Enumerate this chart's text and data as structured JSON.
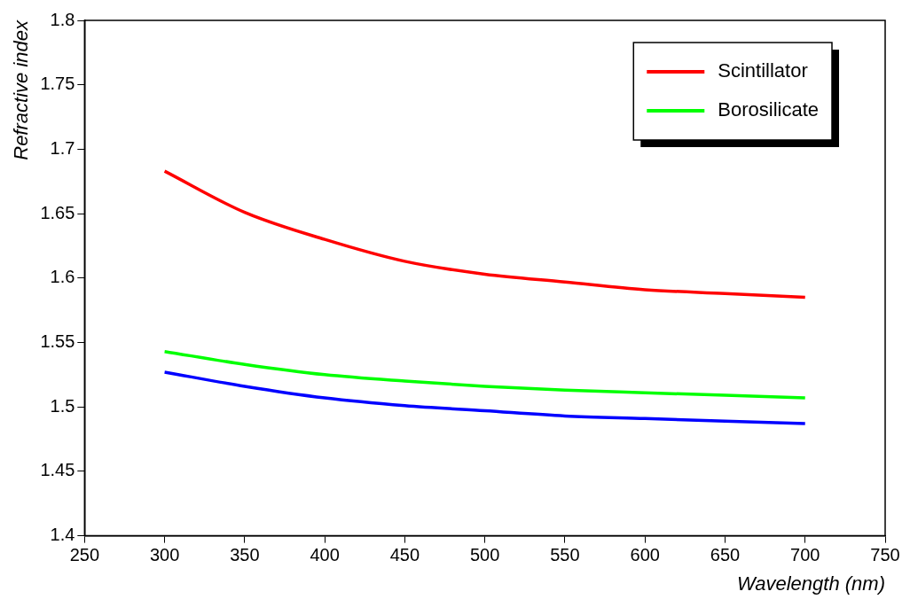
{
  "chart_data": {
    "type": "line",
    "xlabel": "Wavelength (nm)",
    "ylabel": "Refractive index",
    "x": [
      300,
      350,
      400,
      450,
      500,
      550,
      600,
      650,
      700
    ],
    "series": [
      {
        "name": "Scintillator",
        "color": "#ff0000",
        "values": [
          1.683,
          1.651,
          1.63,
          1.613,
          1.603,
          1.597,
          1.591,
          1.588,
          1.585
        ]
      },
      {
        "name": "Borosilicate",
        "color": "#00ff00",
        "values": [
          1.543,
          1.533,
          1.525,
          1.52,
          1.516,
          1.513,
          1.511,
          1.509,
          1.507
        ]
      },
      {
        "color": "#0000ff",
        "values": [
          1.527,
          1.516,
          1.507,
          1.501,
          1.497,
          1.493,
          1.491,
          1.489,
          1.487
        ]
      }
    ],
    "xlim": [
      250,
      750
    ],
    "xticks": [
      250,
      300,
      350,
      400,
      450,
      500,
      550,
      600,
      650,
      700,
      750
    ],
    "ylim": [
      1.4,
      1.8
    ],
    "yticks": [
      1.4,
      1.45,
      1.5,
      1.55,
      1.6,
      1.65,
      1.7,
      1.75,
      1.8
    ],
    "legend": "top right",
    "grid": false,
    "marker": "none",
    "line_style": "solid"
  }
}
